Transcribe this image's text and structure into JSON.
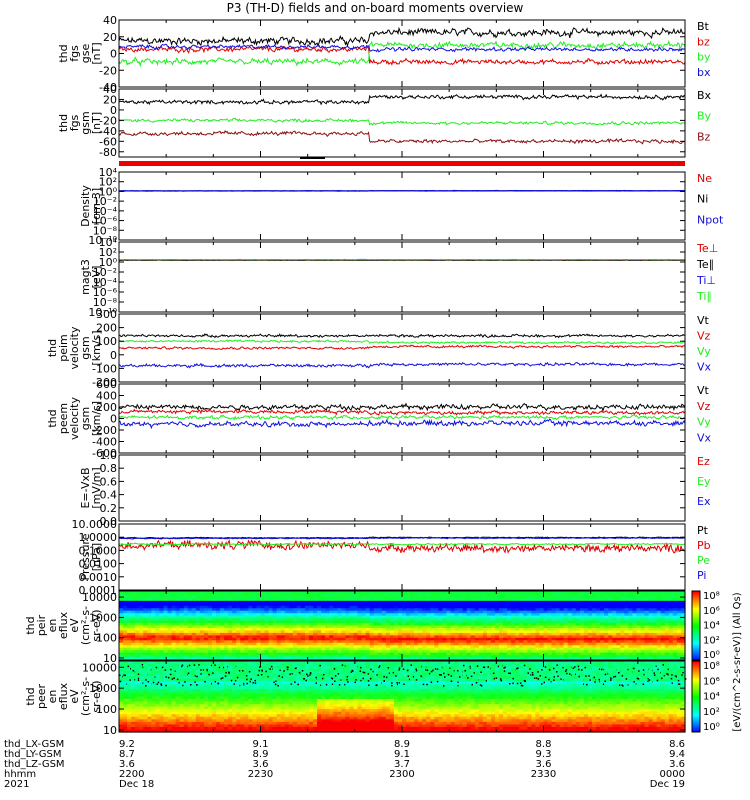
{
  "title": "P3 (TH-D) fields and on-board moments overview",
  "colors": {
    "black": "#000000",
    "red": "#dd0000",
    "green": "#22ee22",
    "blue": "#1010dd",
    "darkred": "#8b1010"
  },
  "chart_data": [
    {
      "type": "line",
      "panel": "fgs-gse",
      "ylabel_lines": [
        "thd",
        "fgs",
        "gse",
        "[nT]"
      ],
      "ylim": [
        -40,
        40
      ],
      "ticks": [
        "40",
        "20",
        "0",
        "-20",
        "-40"
      ],
      "tick_values": [
        40,
        20,
        0,
        -20,
        -40
      ],
      "series": [
        {
          "name": "Bt",
          "color": "black",
          "values_before": 15,
          "values_after": 25
        },
        {
          "name": "bz",
          "color": "red",
          "values_before": 5,
          "values_after": -10
        },
        {
          "name": "by",
          "color": "green",
          "values_before": -10,
          "values_after": 10
        },
        {
          "name": "bx",
          "color": "blue",
          "values_before": 8,
          "values_after": 5
        }
      ]
    },
    {
      "type": "line",
      "panel": "fgs-gsm",
      "ylabel_lines": [
        "thd",
        "fgs",
        "gsm",
        "[nT]"
      ],
      "ylim": [
        -90,
        40
      ],
      "ticks": [
        "40",
        "20",
        "0",
        "-20",
        "-40",
        "-60",
        "-80"
      ],
      "tick_values": [
        40,
        20,
        0,
        -20,
        -40,
        -60,
        -80
      ],
      "series": [
        {
          "name": "Bx",
          "color": "black",
          "values_before": 15,
          "values_after": 25
        },
        {
          "name": "By",
          "color": "green",
          "values_before": -20,
          "values_after": -25
        },
        {
          "name": "Bz",
          "color": "darkred",
          "values_before": -45,
          "values_after": -60
        }
      ]
    },
    {
      "type": "line",
      "panel": "density",
      "ylabel_lines": [
        "Density",
        "[cm-3]"
      ],
      "log": true,
      "ticks": [
        "10⁴",
        "10²",
        "10⁰",
        "10⁻²",
        "10⁻⁴",
        "10⁻⁶",
        "10⁻⁸",
        "10⁻¹⁰"
      ],
      "tick_values": [
        4,
        2,
        0,
        -2,
        -4,
        -6,
        -8,
        -10
      ],
      "ylim": [
        -10,
        4
      ],
      "series": [
        {
          "name": "Ne",
          "color": "red",
          "values_before": 1.2,
          "values_after": 1.3
        },
        {
          "name": "Ni",
          "color": "black",
          "values_before": 1.3,
          "values_after": 1.3
        },
        {
          "name": "Npot",
          "color": "blue",
          "values_before": 1.4,
          "values_after": 1.5
        }
      ]
    },
    {
      "type": "line",
      "panel": "temperature",
      "ylabel_lines": [
        "magt3",
        "[eV]"
      ],
      "log": true,
      "ticks": [
        "10⁴",
        "10²",
        "10⁰",
        "10⁻²",
        "10⁻⁴",
        "10⁻⁶",
        "10⁻⁸",
        "10⁻¹⁰"
      ],
      "tick_values": [
        4,
        2,
        0,
        -2,
        -4,
        -6,
        -8,
        -10
      ],
      "ylim": [
        -10,
        4
      ],
      "series": [
        {
          "name": "Te⊥",
          "color": "red",
          "values_before": 2.2,
          "values_after": 2.2
        },
        {
          "name": "Te∥",
          "color": "black",
          "values_before": 2.3,
          "values_after": 2.3
        },
        {
          "name": "Ti⊥",
          "color": "blue",
          "values_before": 3.0,
          "values_after": 3.0
        },
        {
          "name": "Ti∥",
          "color": "green",
          "values_before": 2.9,
          "values_after": 2.9
        }
      ]
    },
    {
      "type": "line",
      "panel": "peim-velocity",
      "ylabel_lines": [
        "thd",
        "peim",
        "velocity",
        "gsm",
        "[km/s]"
      ],
      "ylim": [
        -200,
        300
      ],
      "ticks": [
        "300",
        "200",
        "100",
        "0",
        "-100",
        "-200"
      ],
      "tick_values": [
        300,
        200,
        100,
        0,
        -100,
        -200
      ],
      "series": [
        {
          "name": "Vt",
          "color": "black",
          "values_before": 140,
          "values_after": 140
        },
        {
          "name": "Vz",
          "color": "red",
          "values_before": 50,
          "values_after": 60
        },
        {
          "name": "Vy",
          "color": "green",
          "values_before": 100,
          "values_after": 90
        },
        {
          "name": "Vx",
          "color": "blue",
          "values_before": -80,
          "values_after": -70
        }
      ]
    },
    {
      "type": "line",
      "panel": "peem-velocity",
      "ylabel_lines": [
        "thd",
        "peem",
        "velocity",
        "gsm",
        "[km/s]"
      ],
      "ylim": [
        -600,
        600
      ],
      "ticks": [
        "600",
        "400",
        "200",
        "0",
        "-200",
        "-400",
        "-600"
      ],
      "tick_values": [
        600,
        400,
        200,
        0,
        -200,
        -400,
        -600
      ],
      "series": [
        {
          "name": "Vt",
          "color": "black",
          "values_before": 200,
          "values_after": 200
        },
        {
          "name": "Vz",
          "color": "red",
          "values_before": 120,
          "values_after": 100
        },
        {
          "name": "Vy",
          "color": "green",
          "values_before": 20,
          "values_after": 20
        },
        {
          "name": "Vx",
          "color": "blue",
          "values_before": -100,
          "values_after": -80
        }
      ]
    },
    {
      "type": "line",
      "panel": "efield",
      "ylabel_lines": [
        "E=-VxB",
        "[mV/m]"
      ],
      "ylim": [
        0,
        1
      ],
      "ticks": [
        "1.0",
        "0.8",
        "0.6",
        "0.4",
        "0.2",
        "0.0"
      ],
      "tick_values": [
        1.0,
        0.8,
        0.6,
        0.4,
        0.2,
        0.0
      ],
      "series": [
        {
          "name": "Ez",
          "color": "red"
        },
        {
          "name": "Ey",
          "color": "green"
        },
        {
          "name": "Ex",
          "color": "blue"
        }
      ]
    },
    {
      "type": "line",
      "panel": "pressure",
      "ylabel_lines": [
        "Pressure",
        "[nPa]"
      ],
      "log": true,
      "ticks": [
        "10.0000",
        "1.0000",
        "0.1000",
        "0.0100",
        "0.0010",
        "0.0001"
      ],
      "tick_values": [
        1,
        0,
        -1,
        -2,
        -3,
        -4
      ],
      "ylim": [
        -4,
        1
      ],
      "series": [
        {
          "name": "Pt",
          "color": "black",
          "values_before": 0.9,
          "values_after": 0.95
        },
        {
          "name": "Pb",
          "color": "red",
          "values_before": 0.25,
          "values_after": 0.15
        },
        {
          "name": "Pe",
          "color": "green",
          "values_before": 0.3,
          "values_after": 0.3
        },
        {
          "name": "Pi",
          "color": "blue",
          "values_before": 0.8,
          "values_after": 0.85
        }
      ]
    },
    {
      "type": "heatmap",
      "panel": "peir-spectrogram",
      "ylabel_lines": [
        "thd",
        "peir",
        "en",
        "eflux",
        "eV",
        "(cm²-s-",
        "sr-eV)"
      ],
      "log": true,
      "ticks": [
        "10000",
        "1000",
        "100",
        "10"
      ],
      "tick_values": [
        4,
        3,
        2,
        1
      ],
      "ylim": [
        0.9,
        4.3
      ]
    },
    {
      "type": "heatmap",
      "panel": "peer-spectrogram",
      "ylabel_lines": [
        "thd",
        "peer",
        "en",
        "eflux",
        "eV",
        "(cm²-s-",
        "sr-eV)"
      ],
      "log": true,
      "ticks": [
        "10000",
        "1000",
        "100",
        "10"
      ],
      "tick_values": [
        4,
        3,
        2,
        1
      ],
      "ylim": [
        0.9,
        4.3
      ]
    }
  ],
  "colorbar": {
    "ticks": [
      "10⁸",
      "10⁶",
      "10⁴",
      "10²",
      "10⁰"
    ],
    "label": "[eV/(cm^2-s-sr-eV)] (All Qs)"
  },
  "x_axis": {
    "rows": [
      {
        "name": "thd_LX-GSM",
        "values": [
          "9.2",
          "9.1",
          "8.9",
          "8.8",
          "8.6"
        ]
      },
      {
        "name": "thd_LY-GSM",
        "values": [
          "8.7",
          "8.9",
          "9.1",
          "9.3",
          "9.4"
        ]
      },
      {
        "name": "thd_LZ-GSM",
        "values": [
          "3.6",
          "3.6",
          "3.7",
          "3.6",
          "3.6"
        ]
      },
      {
        "name": "hhmm",
        "values": [
          "2200",
          "2230",
          "2300",
          "2330",
          "0000"
        ]
      },
      {
        "name": "2021",
        "values": [
          "Dec 18",
          "",
          "",
          "",
          "Dec 19"
        ]
      }
    ],
    "range_minutes": [
      0,
      120
    ]
  }
}
